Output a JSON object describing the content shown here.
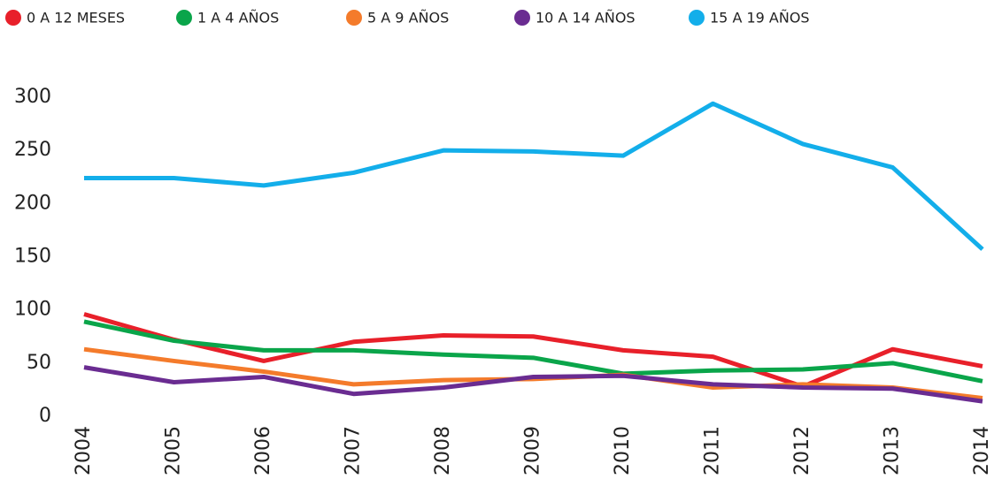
{
  "chart_data": {
    "type": "line",
    "categories": [
      "2004",
      "2005",
      "2006",
      "2007",
      "2008",
      "2009",
      "2010",
      "2011",
      "2012",
      "2013",
      "2014"
    ],
    "series": [
      {
        "name": "0 A 12 MESES",
        "color": "#e8202a",
        "values": [
          96,
          72,
          52,
          70,
          76,
          75,
          62,
          56,
          28,
          63,
          47
        ]
      },
      {
        "name": "1 A 4 AÑOS",
        "color": "#0aa54a",
        "values": [
          89,
          71,
          62,
          62,
          58,
          55,
          40,
          43,
          44,
          50,
          33
        ]
      },
      {
        "name": "5 A 9 AÑOS",
        "color": "#f47b2b",
        "values": [
          63,
          52,
          42,
          30,
          34,
          35,
          39,
          27,
          30,
          27,
          17
        ]
      },
      {
        "name": "10 A 14 AÑOS",
        "color": "#6a2c91",
        "values": [
          46,
          32,
          37,
          21,
          27,
          37,
          38,
          30,
          27,
          26,
          14
        ]
      },
      {
        "name": "15 A 19 AÑOS",
        "color": "#13aeea",
        "values": [
          224,
          224,
          217,
          229,
          250,
          249,
          245,
          294,
          256,
          234,
          157
        ]
      }
    ],
    "ylim": [
      0,
      300
    ],
    "yticks": [
      0,
      50,
      100,
      150,
      200,
      250,
      300
    ],
    "legend": "top-left",
    "grid": false
  }
}
